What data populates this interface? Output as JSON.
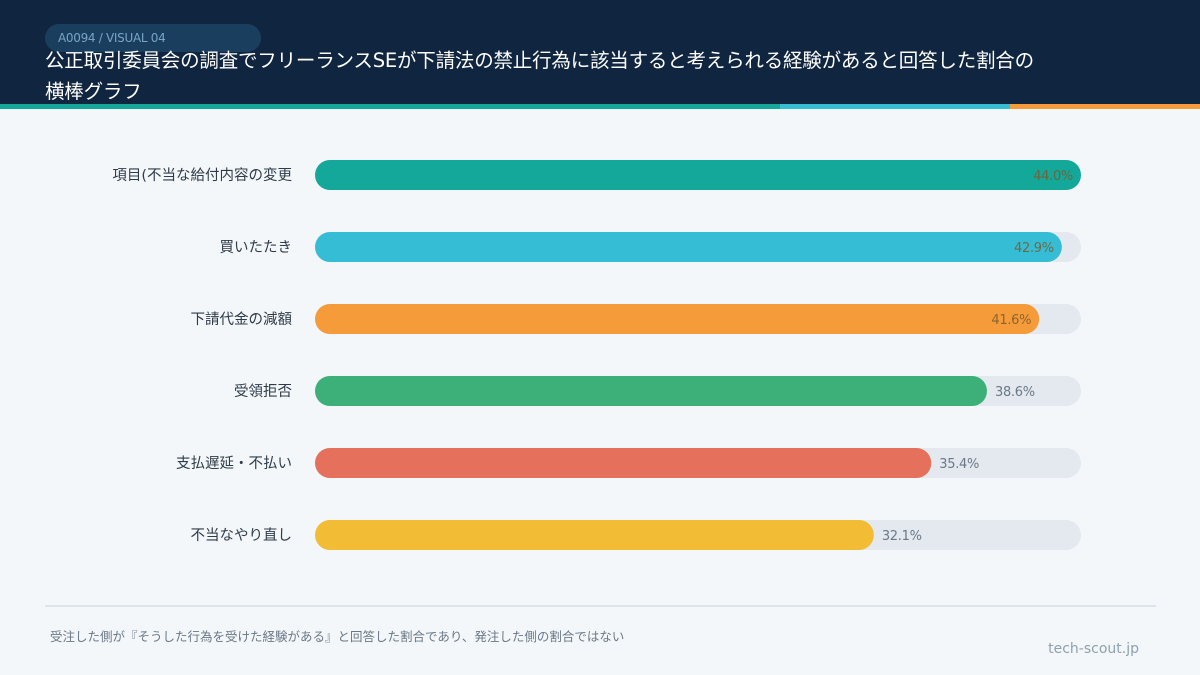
{
  "header": {
    "tag": "A0094 / VISUAL 04",
    "title_line1": "公正取引委員会の調査でフリーランスSEが下請法の禁止行為に該当すると考えられる経験があると回答した割合の",
    "title_line2": "横棒グラフ"
  },
  "colors": {
    "header_bg": "#10253f",
    "track": "#e3e9ef",
    "accent": [
      "#14a89a",
      "#35bdd6",
      "#f59b3a"
    ]
  },
  "chart_data": {
    "type": "bar",
    "orientation": "horizontal",
    "categories": [
      "項目(不当な給付内容の変更",
      "買いたたき",
      "下請代金の減額",
      "受領拒否",
      "支払遅延・不払い",
      "不当なやり直し"
    ],
    "values": [
      44.0,
      42.9,
      41.6,
      38.6,
      35.4,
      32.1
    ],
    "value_labels": [
      "44.0%",
      "42.9%",
      "41.6%",
      "38.6%",
      "35.4%",
      "32.1%"
    ],
    "colors": [
      "#14a89a",
      "#35bdd6",
      "#f59b3a",
      "#3db07a",
      "#e5705c",
      "#f2bd35"
    ],
    "xlim": [
      0,
      44.0
    ],
    "title": "",
    "xlabel": "",
    "ylabel": "",
    "grid": false
  },
  "footer": {
    "note": "受注した側が『そうした行為を受けた経験がある』と回答した割合であり、発注した側の割合ではない",
    "source": "tech-scout.jp"
  }
}
